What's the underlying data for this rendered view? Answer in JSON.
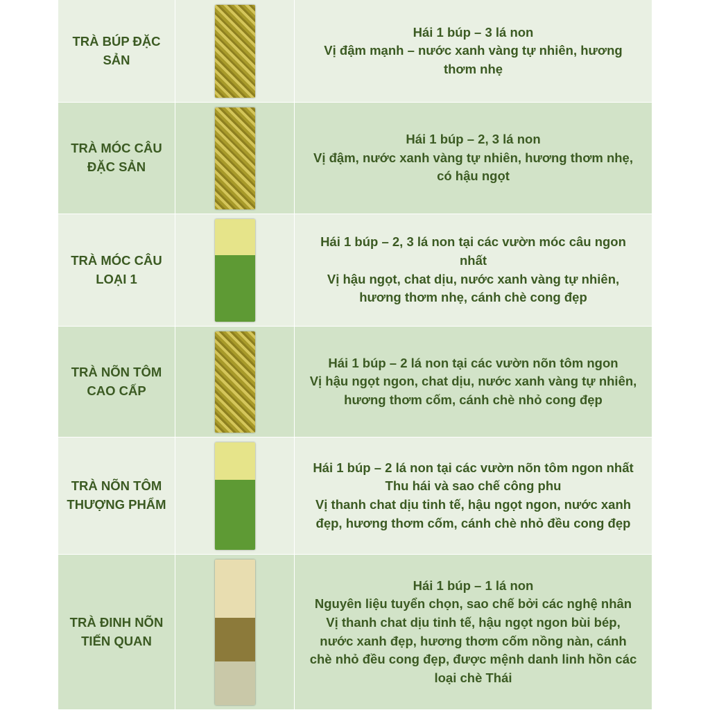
{
  "table": {
    "rows": [
      {
        "name": [
          "TRÀ BÚP ĐẶC",
          "SẢN"
        ],
        "desc": [
          "Hái 1 búp – 3 lá non",
          "Vị đậm mạnh – nước xanh vàng tự nhiên, hương",
          "thơm nhẹ"
        ]
      },
      {
        "name": [
          "TRÀ MÓC CÂU",
          "ĐẶC SẢN"
        ],
        "desc": [
          "Hái 1 búp –  2, 3 lá non",
          "Vị đậm, nước xanh vàng tự nhiên, hương thơm nhẹ,",
          "có hậu ngọt"
        ]
      },
      {
        "name": [
          "TRÀ MÓC CÂU",
          "LOẠI 1"
        ],
        "desc": [
          "Hái 1 búp –  2, 3 lá non tại các vườn móc câu ngon",
          "nhất",
          "Vị hậu ngọt, chat dịu, nước xanh vàng tự nhiên,",
          "hương thơm nhẹ, cánh chè cong đẹp"
        ]
      },
      {
        "name": [
          "TRÀ NÕN TÔM",
          "CAO CẤP"
        ],
        "desc": [
          "Hái 1 búp –  2 lá non tại các vườn nõn tôm ngon",
          "Vị hậu ngọt ngon, chat dịu, nước xanh vàng tự nhiên,",
          "hương thơm cốm, cánh chè nhỏ cong đẹp"
        ]
      },
      {
        "name": [
          "TRÀ NÕN TÔM",
          "THƯỢNG PHẨM"
        ],
        "desc": [
          "Hái 1 búp –  2 lá non tại các vườn nõn tôm ngon nhất",
          "Thu hái và sao chế công phu",
          "Vị thanh chat dịu tinh tế, hậu ngọt ngon,  nước xanh",
          "đẹp, hương thơm cốm, cánh chè nhỏ đều cong đẹp"
        ]
      },
      {
        "name": [
          "TRÀ ĐINH NÕN",
          "TIẾN QUAN"
        ],
        "desc": [
          "Hái 1 búp –  1 lá non",
          "Nguyên liệu tuyển chọn, sao chế bởi các nghệ nhân",
          "Vị thanh chat dịu tinh tế, hậu ngọt ngon bùi bép,",
          "nước xanh đẹp, hương thơm cốm nồng nàn, cánh",
          "chè nhỏ đều cong đẹp, được mệnh danh linh hồn các",
          "loại chè Thái"
        ]
      }
    ]
  }
}
